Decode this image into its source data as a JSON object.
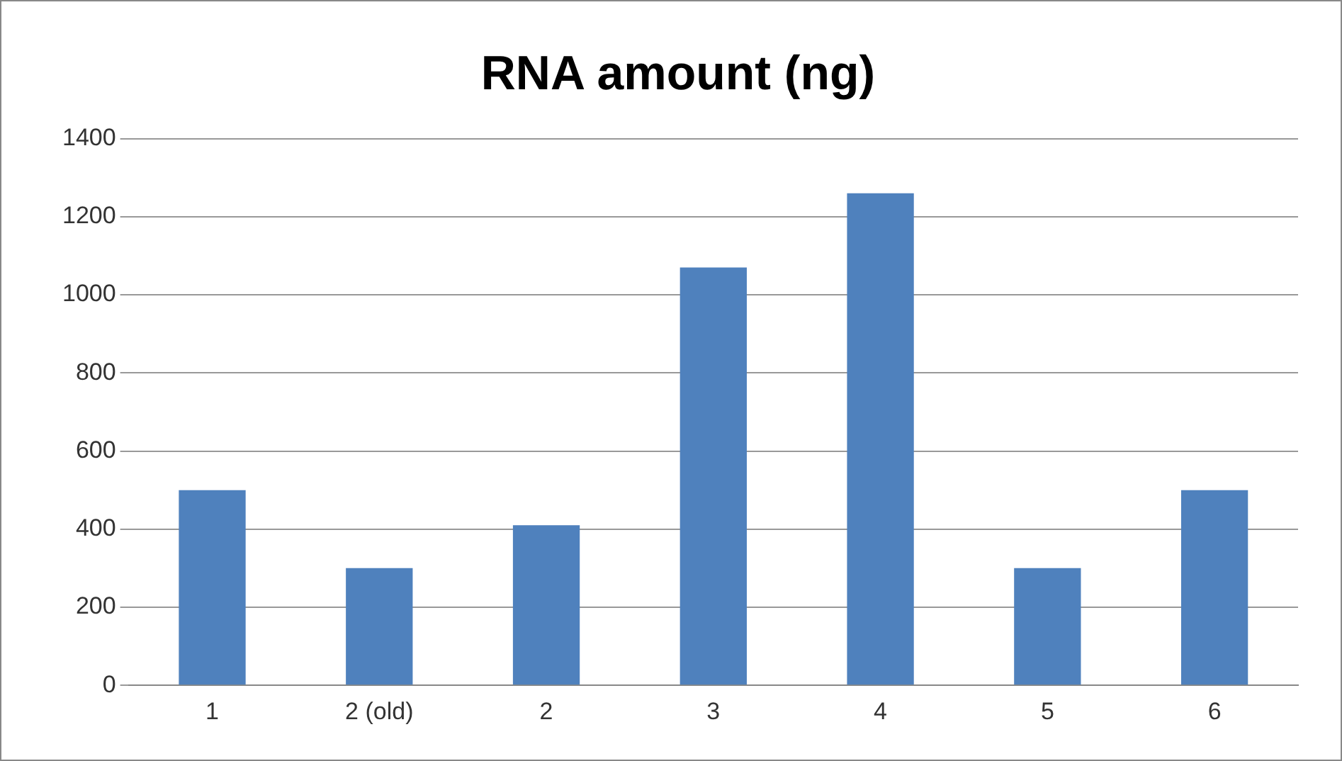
{
  "chart_data": {
    "type": "bar",
    "title": "RNA amount (ng)",
    "categories": [
      "1",
      "2 (old)",
      "2",
      "3",
      "4",
      "5",
      "6"
    ],
    "values": [
      500,
      300,
      410,
      1070,
      1260,
      300,
      500
    ],
    "color": "#4f81bd",
    "ylim": [
      0,
      1400
    ],
    "yticks": [
      0,
      200,
      400,
      600,
      800,
      1000,
      1200,
      1400
    ],
    "grid": "y",
    "legend": false
  }
}
